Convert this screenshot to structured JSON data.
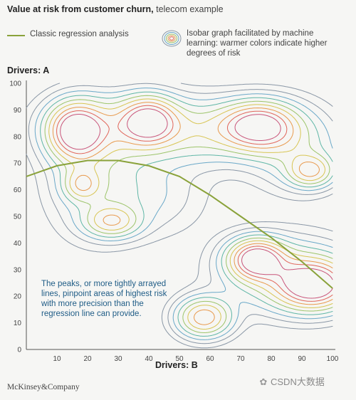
{
  "header": {
    "title_bold": "Value at risk from customer churn,",
    "title_rest": "telecom example"
  },
  "legend": {
    "regression_label": "Classic regression analysis",
    "isobar_label": "Isobar graph facilitated by machine learning: warmer colors indicate higher degrees of risk"
  },
  "annotation": "The peaks, or more tightly arrayed lines, pinpoint areas of highest risk with more precision than the regression line can provide.",
  "footer": {
    "logo": "McKinsey&Company",
    "watermark": "CSDN大数据"
  },
  "colors": {
    "regression": "#8aa23a",
    "contour_scale": [
      "#8a97a6",
      "#6aa8c8",
      "#5fb6a6",
      "#9cc46a",
      "#d8c554",
      "#e89a4e",
      "#e0655a",
      "#c8557a"
    ]
  },
  "chart_data": {
    "type": "contour",
    "xlabel": "Drivers: B",
    "ylabel": "Drivers: A",
    "xlim": [
      0,
      100
    ],
    "ylim": [
      0,
      100
    ],
    "xticks": [
      10,
      20,
      30,
      40,
      50,
      60,
      70,
      80,
      90,
      100
    ],
    "yticks": [
      0,
      10,
      20,
      30,
      40,
      50,
      60,
      70,
      80,
      90,
      100
    ],
    "grid": false,
    "regression_line": {
      "name": "Classic regression analysis",
      "x": [
        0,
        10,
        20,
        30,
        40,
        50,
        60,
        70,
        80,
        90,
        100
      ],
      "y": [
        65,
        69,
        71,
        71,
        69,
        65,
        58,
        50,
        42,
        33,
        23
      ]
    },
    "risk_peaks": [
      {
        "x": 16,
        "y": 82
      },
      {
        "x": 40,
        "y": 86
      },
      {
        "x": 76,
        "y": 84
      },
      {
        "x": 93,
        "y": 67
      },
      {
        "x": 28,
        "y": 48
      },
      {
        "x": 18,
        "y": 62
      },
      {
        "x": 75,
        "y": 34
      },
      {
        "x": 94,
        "y": 24
      },
      {
        "x": 58,
        "y": 12
      }
    ]
  }
}
